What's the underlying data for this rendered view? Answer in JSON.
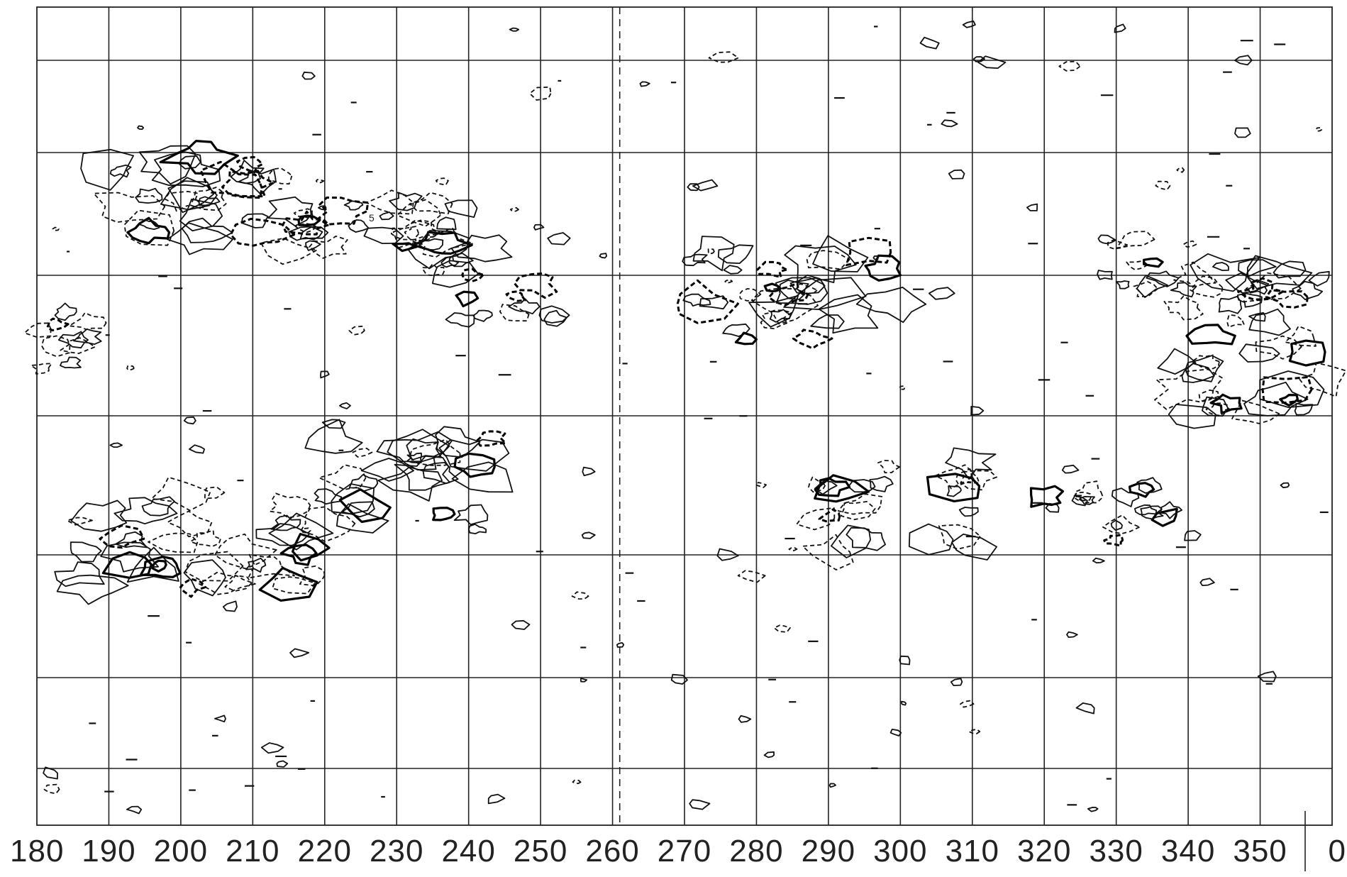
{
  "chart_data": {
    "type": "contour",
    "x_ticks": [
      "180",
      "190",
      "200",
      "210",
      "220",
      "230",
      "240",
      "250",
      "260",
      "270",
      "280",
      "290",
      "300",
      "310",
      "320",
      "330",
      "340",
      "350",
      "0"
    ],
    "xlim": [
      180,
      360
    ],
    "horizontal_gridlines": 7,
    "grid": true,
    "dashed_marker_x": 261,
    "divider_before_label": "0",
    "contour_annotations": [
      "5"
    ],
    "contour_styles": [
      "solid",
      "bold",
      "dashed",
      "dashed-bold"
    ]
  }
}
